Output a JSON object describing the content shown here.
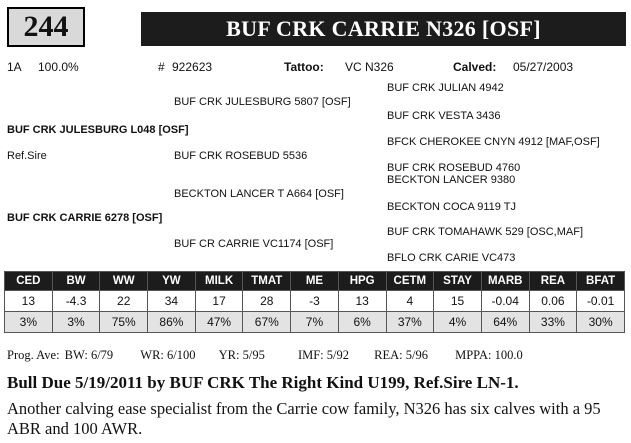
{
  "lot_number": "244",
  "animal_name": "BUF CRK CARRIE N326 [OSF]",
  "info": {
    "class": "1A",
    "percent": "100.0%",
    "reg_label": "#",
    "reg_number": "922623",
    "tattoo_label": "Tattoo:",
    "tattoo": "VC N326",
    "calved_label": "Calved:",
    "calved": "05/27/2003"
  },
  "pedigree": {
    "sire": "BUF CRK JULESBURG L048 [OSF]",
    "ref_sire": "Ref.Sire",
    "sire_sire": "BUF CRK JULESBURG 5807 [OSF]",
    "sire_dam": "BUF CRK ROSEBUD 5536",
    "sss": "BUF CRK JULIAN 4942",
    "ssd": "BUF CRK VESTA 3436",
    "sds": "BFCK CHEROKEE CNYN 4912 [MAF,OSF]",
    "sdd": "BUF CRK ROSEBUD 4760",
    "dam": "BUF CRK CARRIE 6278 [OSF]",
    "dam_sire": "BECKTON LANCER T A664 [OSF]",
    "dam_dam": "BUF CR CARRIE VC1174 [OSF]",
    "dss": "BECKTON LANCER 9380",
    "dsd": "BECKTON COCA 9119 TJ",
    "dds": "BUF CRK TOMAHAWK 529 [OSC,MAF]",
    "ddd": "BFLO CRK CARIE VC473"
  },
  "epd_table": {
    "headers": [
      "CED",
      "BW",
      "WW",
      "YW",
      "MILK",
      "TMAT",
      "ME",
      "HPG",
      "CETM",
      "STAY",
      "MARB",
      "REA",
      "BFAT"
    ],
    "values": [
      "13",
      "-4.3",
      "22",
      "34",
      "17",
      "28",
      "-3",
      "13",
      "4",
      "15",
      "-0.04",
      "0.06",
      "-0.01"
    ],
    "percentiles": [
      "3%",
      "3%",
      "75%",
      "86%",
      "47%",
      "67%",
      "7%",
      "6%",
      "37%",
      "4%",
      "64%",
      "33%",
      "30%"
    ]
  },
  "progeny": {
    "label": "Prog. Ave:",
    "bw": "BW: 6/79",
    "wr": "WR: 6/100",
    "yr": "YR: 5/95",
    "imf": "IMF: 5/92",
    "rea": "REA: 5/96",
    "mppa": "MPPA: 100.0"
  },
  "description": {
    "headline": "Bull Due 5/19/2011 by BUF CRK The Right Kind U199, Ref.Sire LN-1.",
    "body": "Another calving ease specialist from the Carrie cow family, N326 has six calves with a 95 ABR and 100 AWR."
  }
}
